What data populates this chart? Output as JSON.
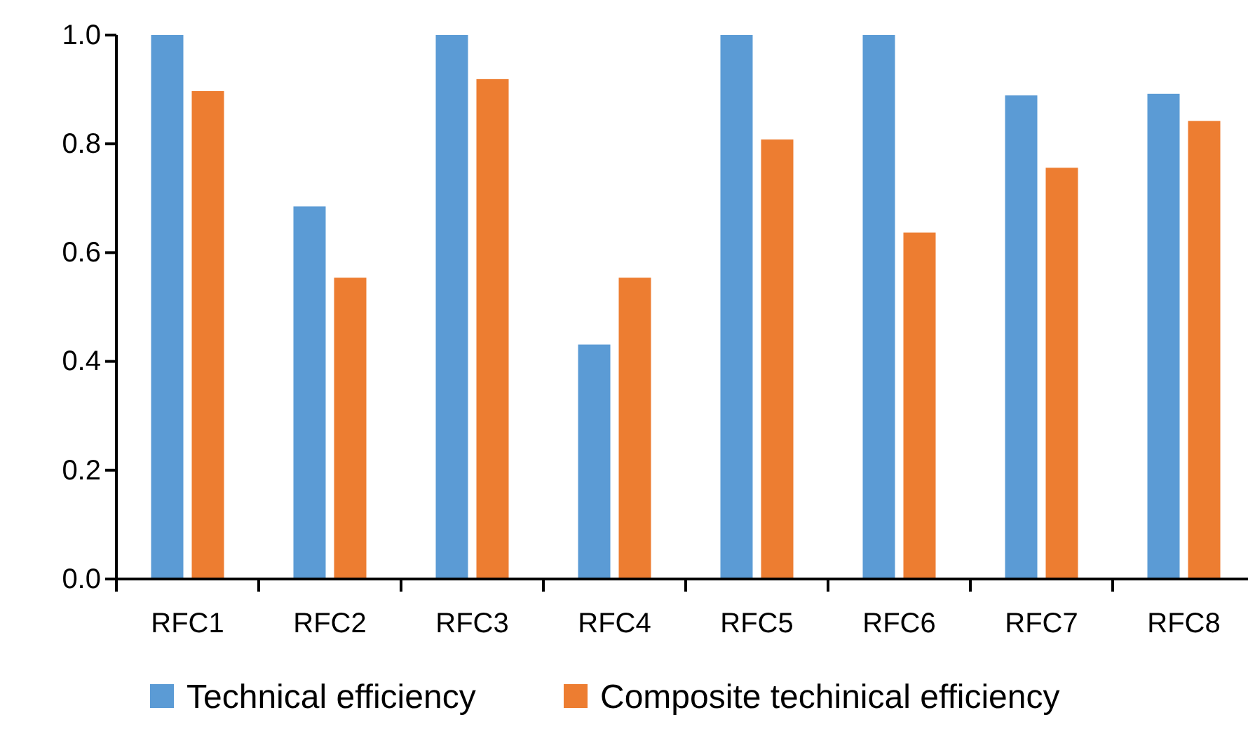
{
  "chart_data": {
    "type": "bar",
    "categories": [
      "RFC1",
      "RFC2",
      "RFC3",
      "RFC4",
      "RFC5",
      "RFC6",
      "RFC7",
      "RFC8"
    ],
    "series": [
      {
        "name": "Technical efficiency",
        "color": "#5b9bd5",
        "values": [
          1.0,
          0.685,
          1.0,
          0.431,
          1.0,
          1.0,
          0.889,
          0.892
        ]
      },
      {
        "name": "Composite techinical efficiency",
        "color": "#ed7d31",
        "values": [
          0.897,
          0.554,
          0.919,
          0.554,
          0.808,
          0.637,
          0.756,
          0.842
        ]
      }
    ],
    "ylim": [
      0,
      1.0
    ],
    "yticks": [
      {
        "value": 0,
        "label": "0.0"
      },
      {
        "value": 0.2,
        "label": "0.2"
      },
      {
        "value": 0.4,
        "label": "0.4"
      },
      {
        "value": 0.6,
        "label": "0.6"
      },
      {
        "value": 0.8,
        "label": "0.8"
      },
      {
        "value": 1.0,
        "label": "1.0"
      }
    ],
    "grid": false,
    "legend": "bottom"
  }
}
